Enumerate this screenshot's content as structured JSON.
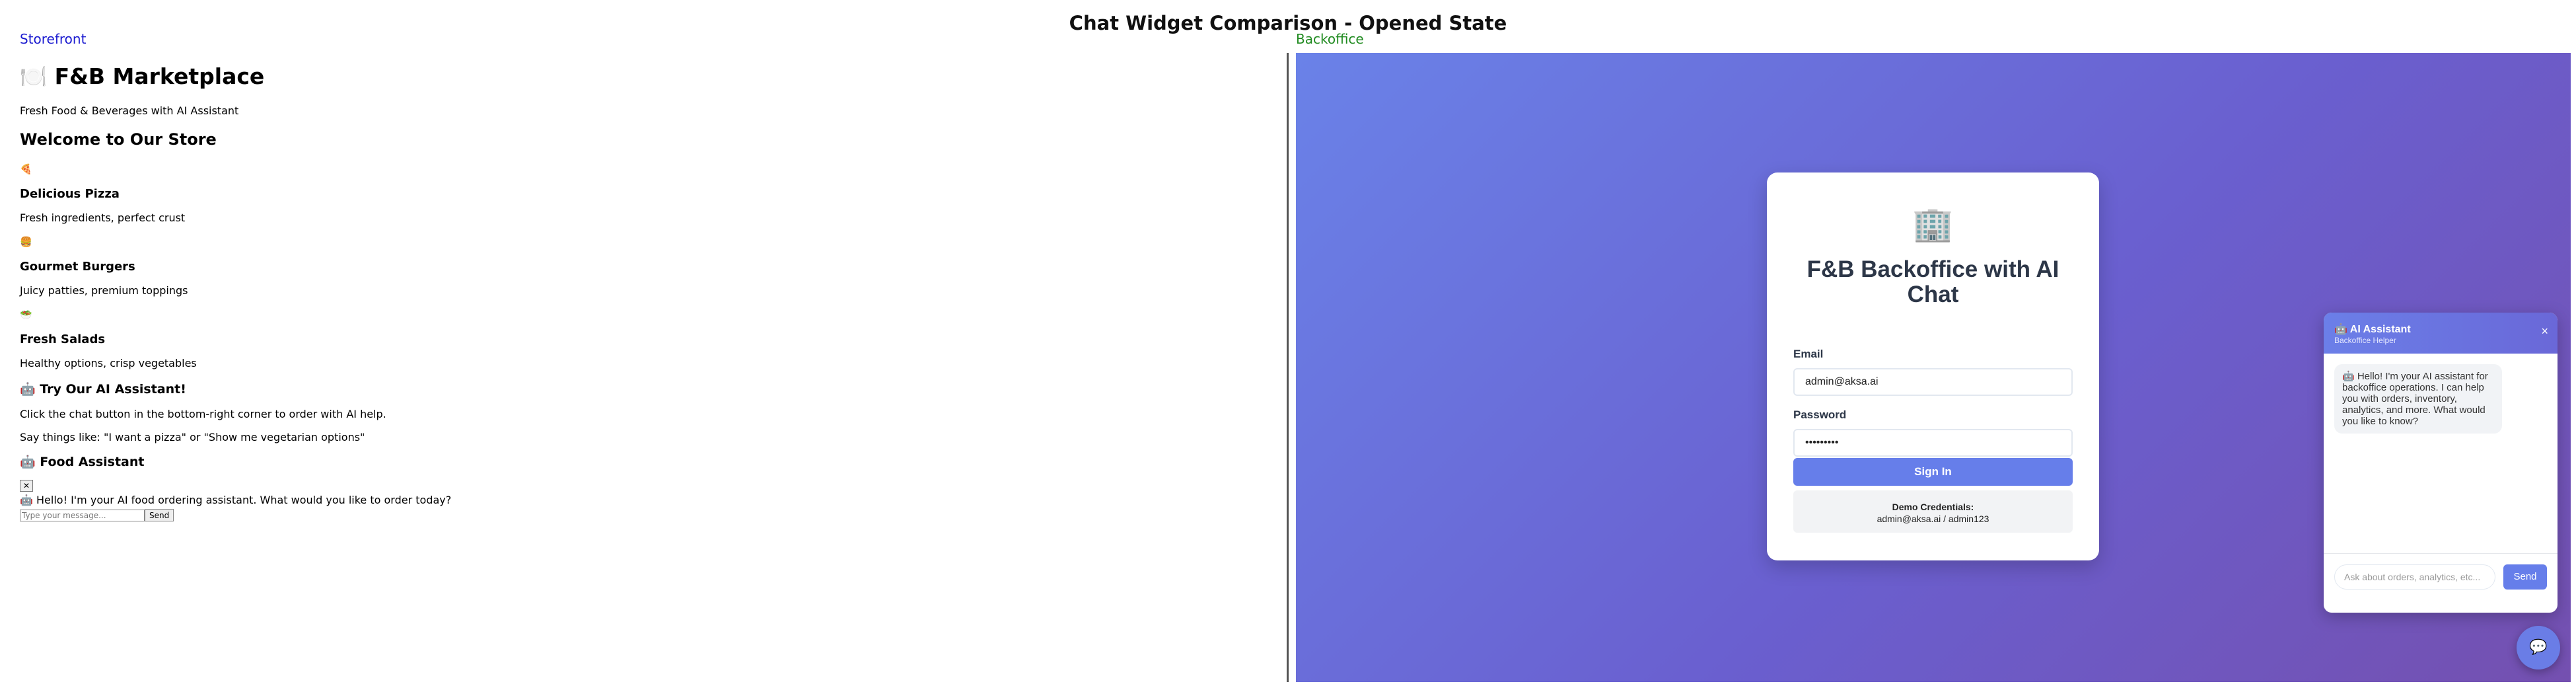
{
  "page": {
    "title": "Chat Widget Comparison - Opened State"
  },
  "panes": {
    "storefront_label": "Storefront",
    "backoffice_label": "Backoffice"
  },
  "storefront": {
    "brand": "🍽️ F&B Marketplace",
    "tagline": "Fresh Food & Beverages with AI Assistant",
    "welcome": "Welcome to Our Store",
    "products": [
      {
        "icon": "🍕",
        "name": "Delicious Pizza",
        "desc": "Fresh ingredients, perfect crust"
      },
      {
        "icon": "🍔",
        "name": "Gourmet Burgers",
        "desc": "Juicy patties, premium toppings"
      },
      {
        "icon": "🥗",
        "name": "Fresh Salads",
        "desc": "Healthy options, crisp vegetables"
      }
    ],
    "ai_heading": "🤖 Try Our AI Assistant!",
    "ai_text1": "Click the chat button in the bottom-right corner to order with AI help.",
    "ai_text2": "Say things like: \"I want a pizza\" or \"Show me vegetarian options\"",
    "chat": {
      "title": "🤖 Food Assistant",
      "close_label": "✕",
      "message": "🤖 Hello! I'm your AI food ordering assistant. What would you like to order today?",
      "input_placeholder": "Type your message...",
      "send_label": "Send"
    }
  },
  "backoffice": {
    "login": {
      "logo": "🏢",
      "title": "F&B Backoffice with AI Chat",
      "email_label": "Email",
      "email_value": "admin@aksa.ai",
      "password_label": "Password",
      "password_value": "•••••••••",
      "signin_label": "Sign In",
      "demo_title": "Demo Credentials:",
      "demo_value": "admin@aksa.ai / admin123"
    },
    "chat": {
      "title": "🤖 AI Assistant",
      "subtitle": "Backoffice Helper",
      "close_label": "×",
      "message": "🤖 Hello! I'm your AI assistant for backoffice operations. I can help you with orders, inventory, analytics, and more. What would you like to know?",
      "input_placeholder": "Ask about orders, analytics, etc...",
      "send_label": "Send",
      "fab_icon": "💬"
    }
  },
  "colors": {
    "accent": "#667eea",
    "gradient_start": "#6a82e8",
    "gradient_end": "#7450b0"
  }
}
